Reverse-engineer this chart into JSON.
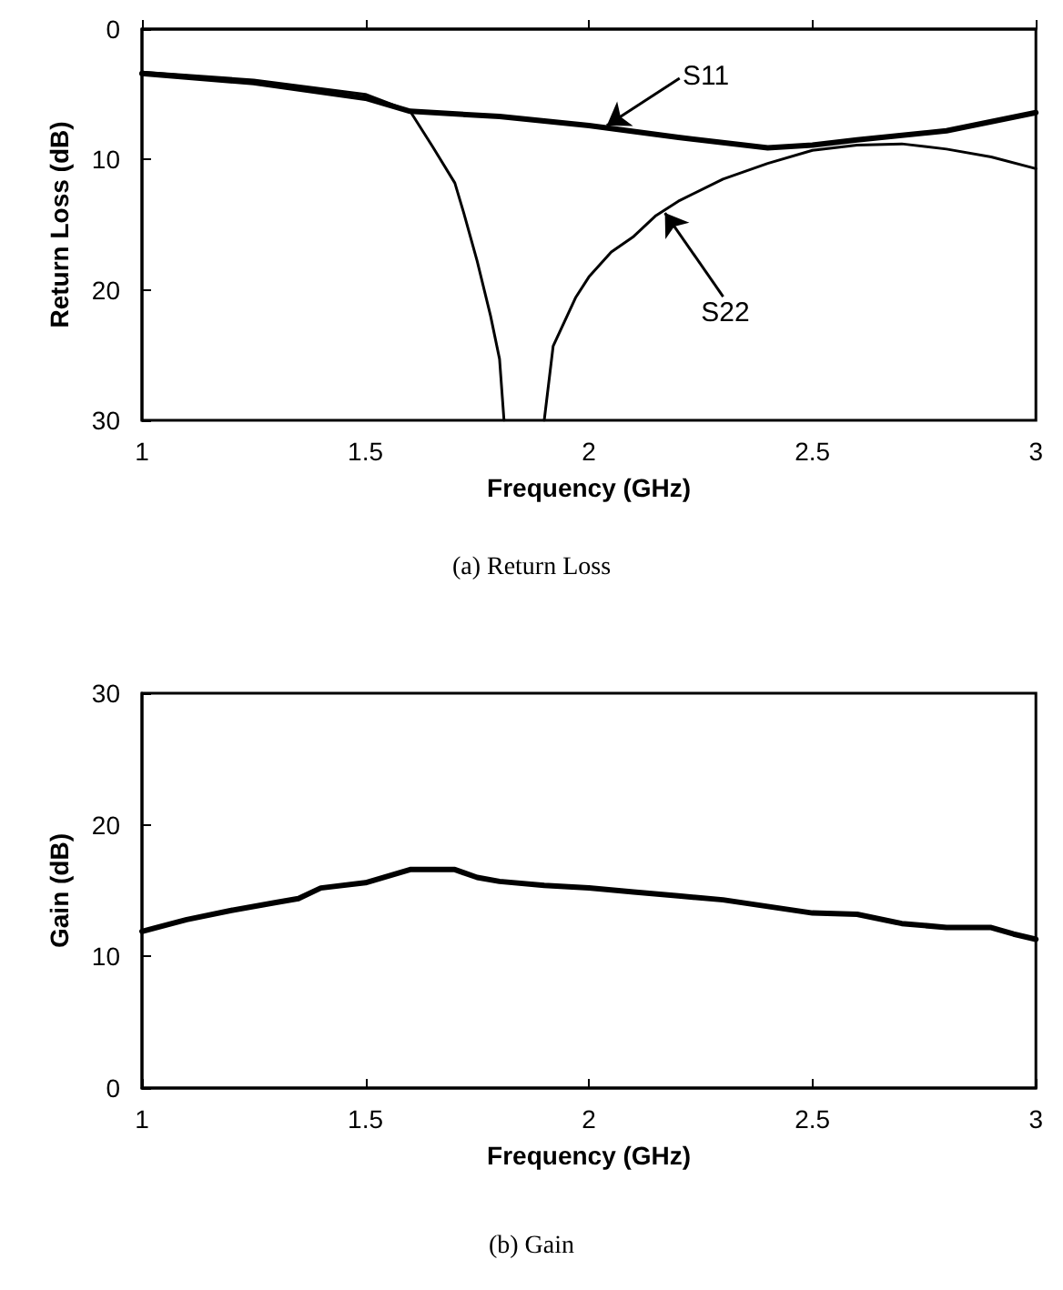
{
  "chart_data": [
    {
      "type": "line",
      "xlabel": "Frequency (GHz)",
      "ylabel": "Return Loss (dB)",
      "xlim": [
        1,
        3
      ],
      "xticks": [
        1,
        1.5,
        2,
        2.5,
        3
      ],
      "ylim": [
        30,
        0
      ],
      "yticks": [
        0,
        10,
        20,
        30
      ],
      "grid": false,
      "marker": "none",
      "line_style": "solid",
      "series": [
        {
          "color": "#000000",
          "x": [
            1,
            1.25,
            1.5,
            1.6,
            1.8,
            2.0,
            2.2,
            2.4,
            2.5,
            2.6,
            2.8,
            2.9,
            3.0
          ],
          "values": [
            3.4,
            4.1,
            5.3,
            6.3,
            6.7,
            7.4,
            8.3,
            9.1,
            8.9,
            8.5,
            7.8,
            7.1,
            6.4
          ]
        },
        {
          "color": "#000000",
          "x": [
            1,
            1.25,
            1.5,
            1.6,
            1.65,
            1.7,
            1.72,
            1.75,
            1.78,
            1.8,
            1.81,
            1.85,
            1.9,
            1.92,
            1.97,
            2.0,
            2.05,
            2.1,
            2.15,
            2.2,
            2.3,
            2.4,
            2.5,
            2.6,
            2.7,
            2.8,
            2.9,
            3.0
          ],
          "values": [
            3.3,
            3.9,
            5.0,
            6.3,
            9.0,
            11.8,
            14.1,
            17.8,
            22,
            25.3,
            30,
            null,
            30,
            24.3,
            20.6,
            19,
            17.1,
            15.9,
            14.3,
            13.2,
            11.5,
            10.3,
            9.3,
            8.9,
            8.8,
            9.2,
            9.8,
            10.7
          ]
        }
      ],
      "annotations": [
        {
          "text": "S11",
          "x": 2.04,
          "y": 7.4
        },
        {
          "text": "S22",
          "x": 2.17,
          "y": 14.1
        },
        "(a) Return Loss"
      ]
    },
    {
      "type": "line",
      "xlabel": "Frequency (GHz)",
      "ylabel": "Gain (dB)",
      "xlim": [
        1,
        3
      ],
      "xticks": [
        1,
        1.5,
        2,
        2.5,
        3
      ],
      "ylim": [
        0,
        30
      ],
      "yticks": [
        0,
        10,
        20,
        30
      ],
      "grid": false,
      "marker": "none",
      "line_style": "solid",
      "series": [
        {
          "color": "#000000",
          "x": [
            1,
            1.1,
            1.2,
            1.3,
            1.35,
            1.4,
            1.5,
            1.55,
            1.6,
            1.7,
            1.75,
            1.8,
            1.9,
            2.0,
            2.1,
            2.2,
            2.3,
            2.4,
            2.5,
            2.6,
            2.7,
            2.8,
            2.9,
            2.95,
            3.0
          ],
          "values": [
            11.9,
            12.8,
            13.5,
            14.1,
            14.4,
            15.2,
            15.6,
            16.1,
            16.6,
            16.6,
            16.0,
            15.7,
            15.4,
            15.2,
            14.9,
            14.6,
            14.3,
            13.8,
            13.3,
            13.2,
            12.5,
            12.2,
            12.2,
            11.7,
            11.3
          ]
        }
      ],
      "annotations": [
        "(b) Gain"
      ]
    }
  ]
}
